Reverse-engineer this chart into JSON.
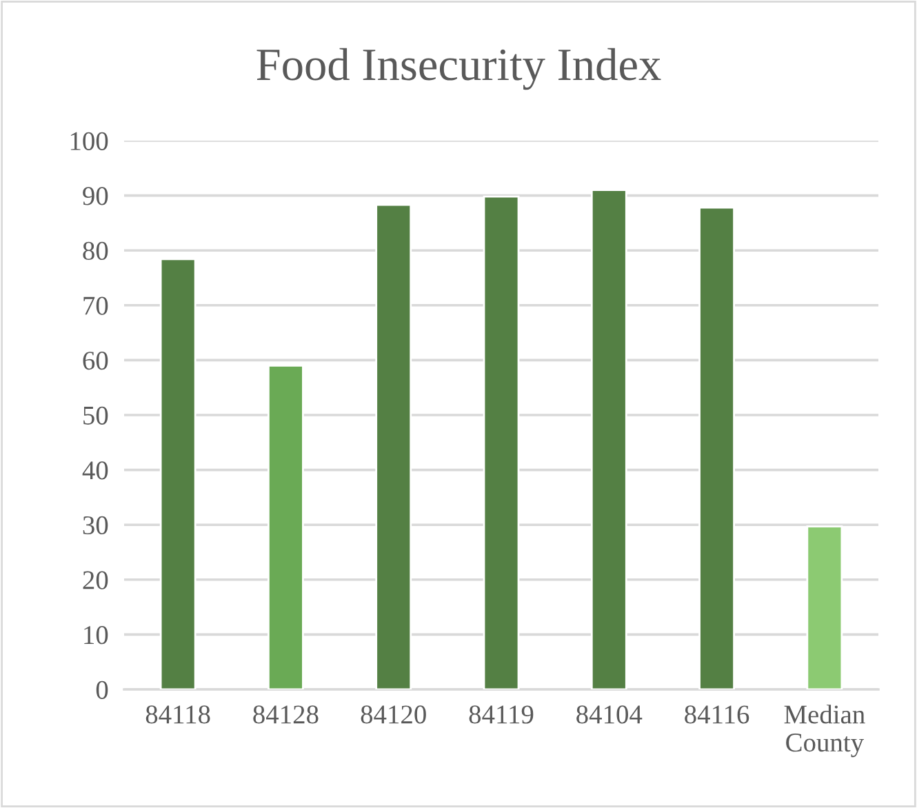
{
  "chart_data": {
    "type": "bar",
    "title": "Food Insecurity Index",
    "categories": [
      "84118",
      "84128",
      "84120",
      "84119",
      "84104",
      "84116",
      "Median County"
    ],
    "values": [
      78.4,
      59.0,
      88.3,
      89.8,
      91.0,
      87.8,
      29.7
    ],
    "colors": [
      "#548044",
      "#6aaa55",
      "#548044",
      "#548044",
      "#548044",
      "#548044",
      "#8cca72"
    ],
    "ylim": [
      0,
      100
    ],
    "yticks": [
      0,
      10,
      20,
      30,
      40,
      50,
      60,
      70,
      80,
      90,
      100
    ],
    "grid": "y",
    "legend": false
  }
}
